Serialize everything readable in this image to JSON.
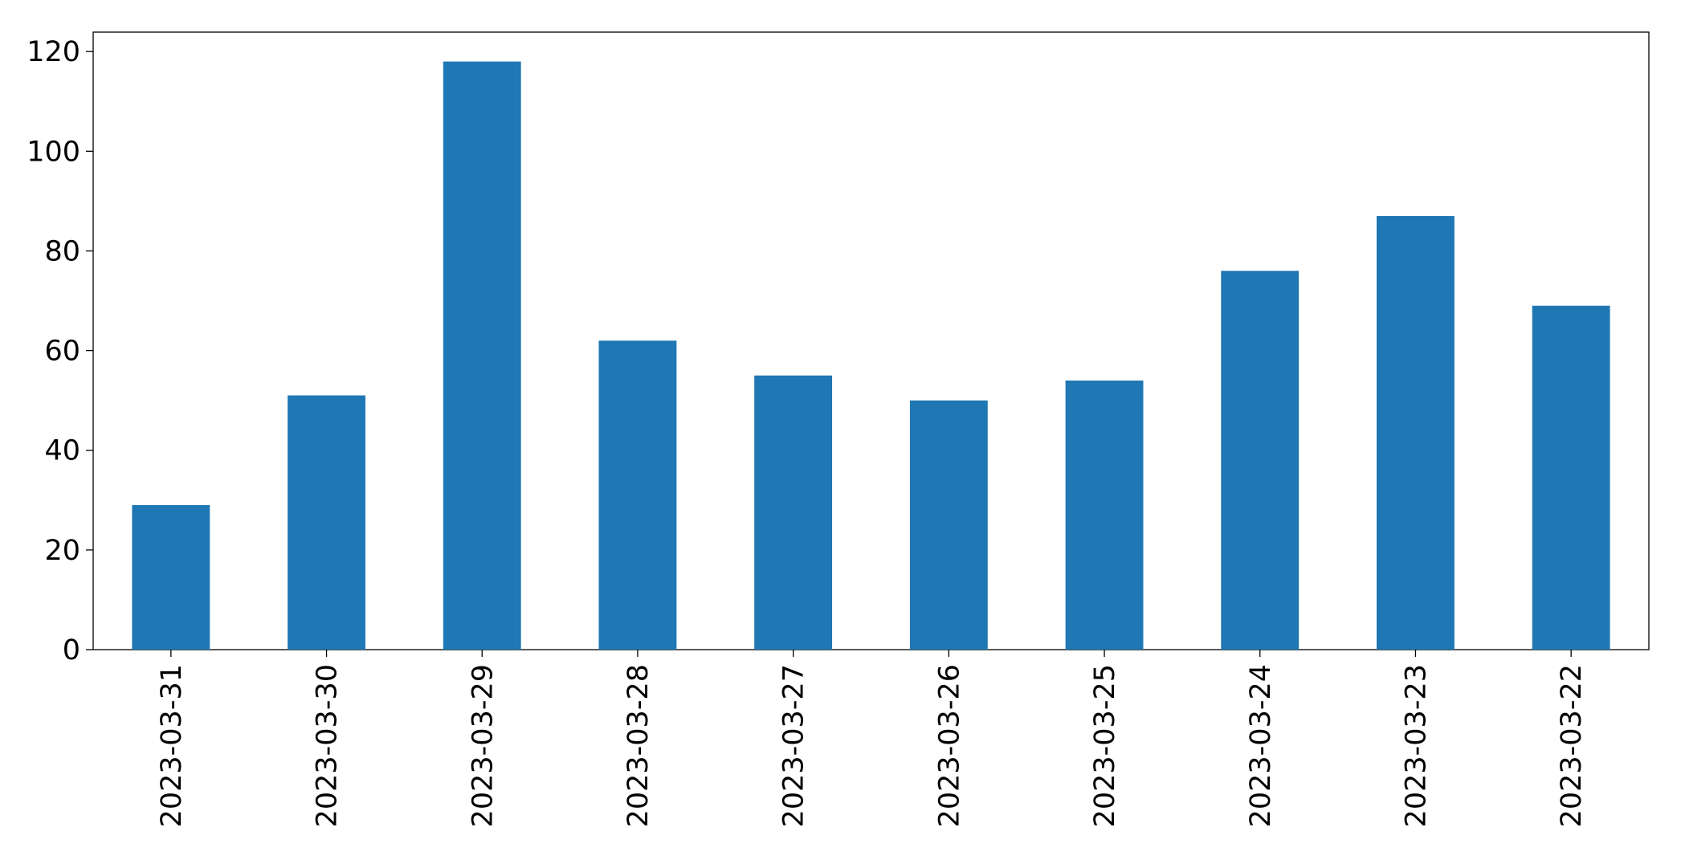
{
  "chart_data": {
    "type": "bar",
    "categories": [
      "2023-03-31",
      "2023-03-30",
      "2023-03-29",
      "2023-03-28",
      "2023-03-27",
      "2023-03-26",
      "2023-03-25",
      "2023-03-24",
      "2023-03-23",
      "2023-03-22"
    ],
    "values": [
      29,
      51,
      118,
      62,
      55,
      50,
      54,
      76,
      87,
      69
    ],
    "color": "#1f77b4",
    "ylim": [
      0,
      123.9
    ],
    "yticks": [
      0,
      20,
      40,
      60,
      80,
      100,
      120
    ],
    "grid": false
  }
}
